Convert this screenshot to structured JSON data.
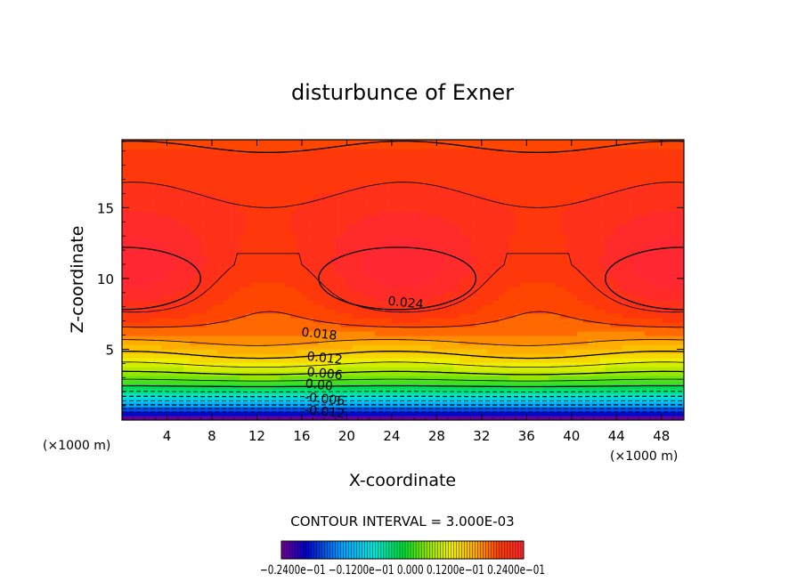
{
  "chart_data": {
    "type": "contour",
    "title": "disturbunce of Exner",
    "xlabel": "X-coordinate",
    "ylabel": "Z-coordinate",
    "x_unit_left": "(×1000 m)",
    "x_unit_right": "(×1000 m)",
    "xlim": [
      0,
      50
    ],
    "ylim": [
      0,
      19.8
    ],
    "x_ticks": [
      4,
      8,
      12,
      16,
      20,
      24,
      28,
      32,
      36,
      40,
      44,
      48
    ],
    "y_ticks": [
      5,
      10,
      15
    ],
    "contour_interval_text": "CONTOUR INTERVAL = 3.000E-03",
    "contour_labels": [
      {
        "text": "0.024",
        "x": 25.2,
        "z": 8.0
      },
      {
        "text": "0.018",
        "x": 17.5,
        "z": 5.8
      },
      {
        "text": "0.012",
        "x": 18.0,
        "z": 4.1
      },
      {
        "text": "0.006",
        "x": 18.0,
        "z": 3.0
      },
      {
        "text": "0.00",
        "x": 17.5,
        "z": 2.2
      },
      {
        "text": "-0.006",
        "x": 18.0,
        "z": 1.2
      },
      {
        "text": "-0.012",
        "x": 18.0,
        "z": 0.3
      }
    ],
    "colorbar": {
      "min": -0.024,
      "max": 0.024,
      "tick_text": "−0.2400e−01   −0.1200e−01   0.000   0.1200e−01   0.2400e−01"
    }
  }
}
